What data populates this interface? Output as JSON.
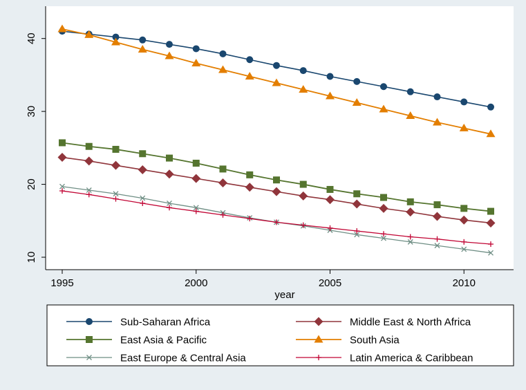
{
  "chart_data": {
    "type": "line",
    "title": "",
    "xlabel": "year",
    "ylabel": "",
    "xlim": [
      1995,
      2011
    ],
    "ylim": [
      10,
      42
    ],
    "xticks": [
      1995,
      2000,
      2005,
      2010
    ],
    "yticks": [
      10,
      20,
      30,
      40
    ],
    "grid": false,
    "legend_position": "bottom",
    "x": [
      1995,
      1996,
      1997,
      1998,
      1999,
      2000,
      2001,
      2002,
      2003,
      2004,
      2005,
      2006,
      2007,
      2008,
      2009,
      2010,
      2011
    ],
    "series": [
      {
        "name": "Sub-Saharan Africa",
        "color": "#1a476f",
        "marker": "circle",
        "values": [
          41.0,
          40.6,
          40.2,
          39.8,
          39.2,
          38.6,
          37.9,
          37.1,
          36.3,
          35.6,
          34.8,
          34.1,
          33.4,
          32.7,
          32.0,
          31.3,
          30.6
        ]
      },
      {
        "name": "Middle East & North Africa",
        "color": "#90353b",
        "marker": "diamond",
        "values": [
          23.7,
          23.2,
          22.6,
          22.0,
          21.4,
          20.8,
          20.2,
          19.6,
          19.0,
          18.4,
          17.9,
          17.3,
          16.7,
          16.2,
          15.6,
          15.1,
          14.7
        ]
      },
      {
        "name": "East Asia & Pacific",
        "color": "#55752f",
        "marker": "square",
        "values": [
          25.7,
          25.2,
          24.8,
          24.2,
          23.6,
          22.9,
          22.1,
          21.3,
          20.6,
          20.0,
          19.3,
          18.7,
          18.2,
          17.6,
          17.2,
          16.7,
          16.3
        ]
      },
      {
        "name": "South Asia",
        "color": "#e37e00",
        "marker": "triangle",
        "values": [
          41.3,
          40.5,
          39.5,
          38.5,
          37.6,
          36.6,
          35.7,
          34.8,
          33.9,
          33.0,
          32.1,
          31.2,
          30.3,
          29.4,
          28.5,
          27.7,
          26.9
        ]
      },
      {
        "name": "East Europe & Central Asia",
        "color": "#6e8e84",
        "marker": "x",
        "values": [
          19.7,
          19.2,
          18.7,
          18.1,
          17.4,
          16.8,
          16.1,
          15.4,
          14.8,
          14.3,
          13.7,
          13.1,
          12.6,
          12.1,
          11.6,
          11.1,
          10.6
        ]
      },
      {
        "name": "Latin America & Caribbean",
        "color": "#c10534",
        "marker": "plus",
        "values": [
          19.1,
          18.6,
          18.0,
          17.4,
          16.8,
          16.3,
          15.8,
          15.3,
          14.8,
          14.4,
          14.0,
          13.6,
          13.2,
          12.8,
          12.5,
          12.1,
          11.8
        ]
      }
    ]
  }
}
